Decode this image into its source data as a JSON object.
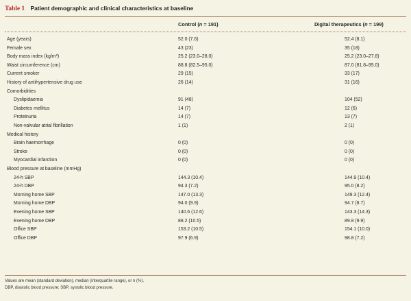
{
  "table": {
    "label": "Table 1",
    "title": "Patient demographic and clinical characteristics at baseline",
    "col_control": {
      "prefix": "Control (",
      "n": "n",
      "suffix": " = 191)"
    },
    "col_digital": {
      "prefix": "Digital therapeutics (",
      "n": "n",
      "suffix": " = 199)"
    },
    "rows": [
      {
        "label": "Age (years)",
        "control": "52.0 (7.6)",
        "digital": "52.4 (8.1)",
        "indent": false
      },
      {
        "label": "Female sex",
        "control": "43 (23)",
        "digital": "35 (18)",
        "indent": false
      },
      {
        "label": "Body mass index (kg/m²)",
        "control": "25.2 (23.0–28.0)",
        "digital": "25.2 (23.0–27.8)",
        "indent": false
      },
      {
        "label": "Waist circumference (cm)",
        "control": "88.8 (82.5–95.0)",
        "digital": "87.0 (81.8–95.0)",
        "indent": false
      },
      {
        "label": "Current smoker",
        "control": "29 (15)",
        "digital": "33 (17)",
        "indent": false
      },
      {
        "label": "History of antihypertensive drug use",
        "control": "26 (14)",
        "digital": "31 (16)",
        "indent": false
      },
      {
        "label": "Comorbidities",
        "control": "",
        "digital": "",
        "indent": false
      },
      {
        "label": "Dyslipidaemia",
        "control": "91 (48)",
        "digital": "104 (52)",
        "indent": true
      },
      {
        "label": "Diabetes mellitus",
        "control": "14 (7)",
        "digital": "12 (6)",
        "indent": true
      },
      {
        "label": "Proteinuria",
        "control": "14 (7)",
        "digital": "13 (7)",
        "indent": true
      },
      {
        "label": "Non-valvular atrial fibrillation",
        "control": "1 (1)",
        "digital": "2 (1)",
        "indent": true
      },
      {
        "label": "Medical history",
        "control": "",
        "digital": "",
        "indent": false
      },
      {
        "label": "Brain haemorrhage",
        "control": "0 (0)",
        "digital": "0 (0)",
        "indent": true
      },
      {
        "label": "Stroke",
        "control": "0 (0)",
        "digital": "0 (0)",
        "indent": true
      },
      {
        "label": "Myocardial infarction",
        "control": "0 (0)",
        "digital": "0 (0)",
        "indent": true
      },
      {
        "label": "Blood pressure at baseline (mmHg)",
        "control": "",
        "digital": "",
        "indent": false
      },
      {
        "label": "24-h SBP",
        "control": "144.3 (10.4)",
        "digital": "144.9 (10.4)",
        "indent": true
      },
      {
        "label": "24-h DBP",
        "control": "94.3 (7.2)",
        "digital": "95.0 (8.2)",
        "indent": true
      },
      {
        "label": "Morning home SBP",
        "control": "147.0 (13.3)",
        "digital": "149.3 (12.4)",
        "indent": true
      },
      {
        "label": "Morning home DBP",
        "control": "94.0 (9.9)",
        "digital": "94.7 (8.7)",
        "indent": true
      },
      {
        "label": "Evening home SBP",
        "control": "140.6 (12.6)",
        "digital": "143.3 (14.3)",
        "indent": true
      },
      {
        "label": "Evening home DBP",
        "control": "88.2 (10.5)",
        "digital": "89.8 (9.9)",
        "indent": true
      },
      {
        "label": "Office SBP",
        "control": "153.2 (10.5)",
        "digital": "154.1 (10.0)",
        "indent": true
      },
      {
        "label": "Office DBP",
        "control": "97.9 (6.9)",
        "digital": "98.8 (7.2)",
        "indent": true
      }
    ],
    "footnote_1": "Values are mean (standard deviation), median (interquartile range), or n (%).",
    "footnote_2": "DBP, diastolic blood pressure; SBP, systolic blood pressure."
  },
  "colors": {
    "background": "#f5f3e4",
    "accent": "#b3282d",
    "rule": "#9a6a4a"
  }
}
